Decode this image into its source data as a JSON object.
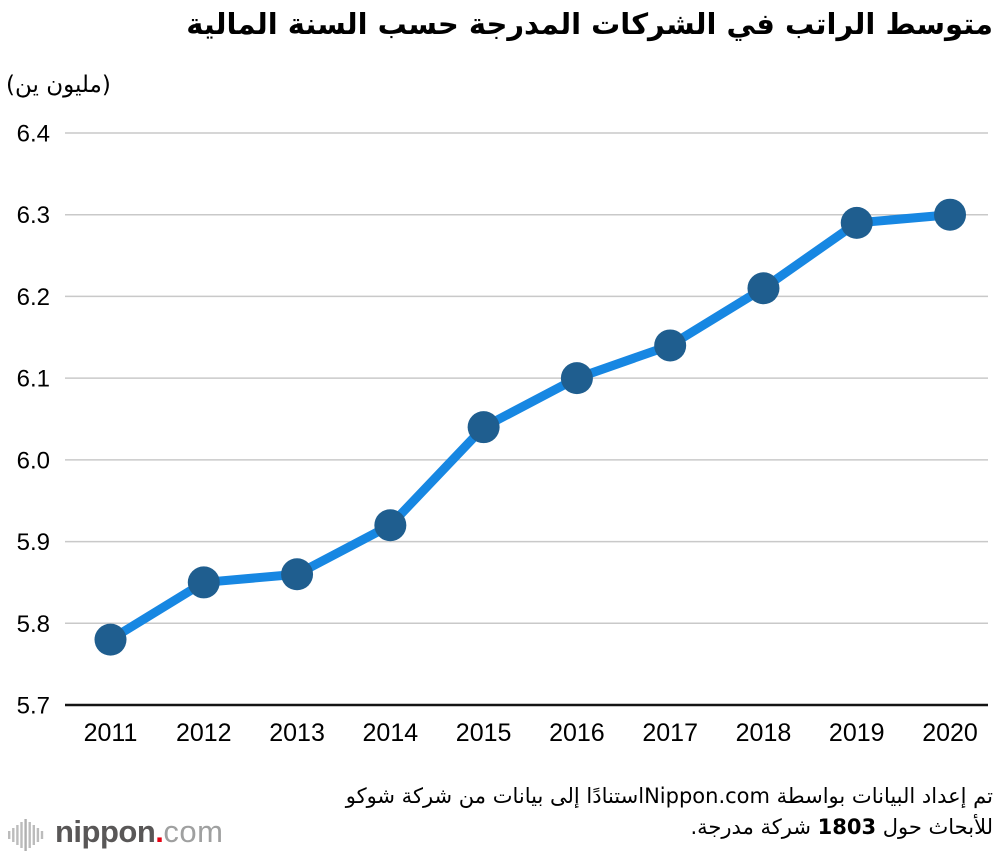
{
  "header": {
    "title": "متوسط الراتب في الشركات المدرجة حسب السنة المالية",
    "unit_label": "(مليون ين)"
  },
  "chart_data": {
    "type": "line",
    "title": "متوسط الراتب في الشركات المدرجة حسب السنة المالية",
    "unit_label": "(مليون ين)",
    "x": [
      2011,
      2012,
      2013,
      2014,
      2015,
      2016,
      2017,
      2018,
      2019,
      2020
    ],
    "values": [
      5.78,
      5.85,
      5.86,
      5.92,
      6.04,
      6.1,
      6.14,
      6.21,
      6.29,
      6.3
    ],
    "ylim": [
      5.7,
      6.4
    ],
    "ytick_step": 0.1,
    "grid": true,
    "legend": "none",
    "line_color": "#1787e2",
    "marker_color": "#1f5e8f",
    "grid_color": "#c9c9c9",
    "axis_color": "#141414"
  },
  "footer": {
    "source_line1": "تم إعداد البيانات بواسطة Nippon.comاستنادًا إلى بيانات من شركة شوكو",
    "source_line2_prefix": "للأبحاث حول ",
    "source_line2_number": "1803",
    "source_line2_suffix": " شركة مدرجة.",
    "logo": {
      "name": "nippon",
      "dot": ".",
      "tld": "com",
      "dot_color": "#e60012"
    }
  }
}
